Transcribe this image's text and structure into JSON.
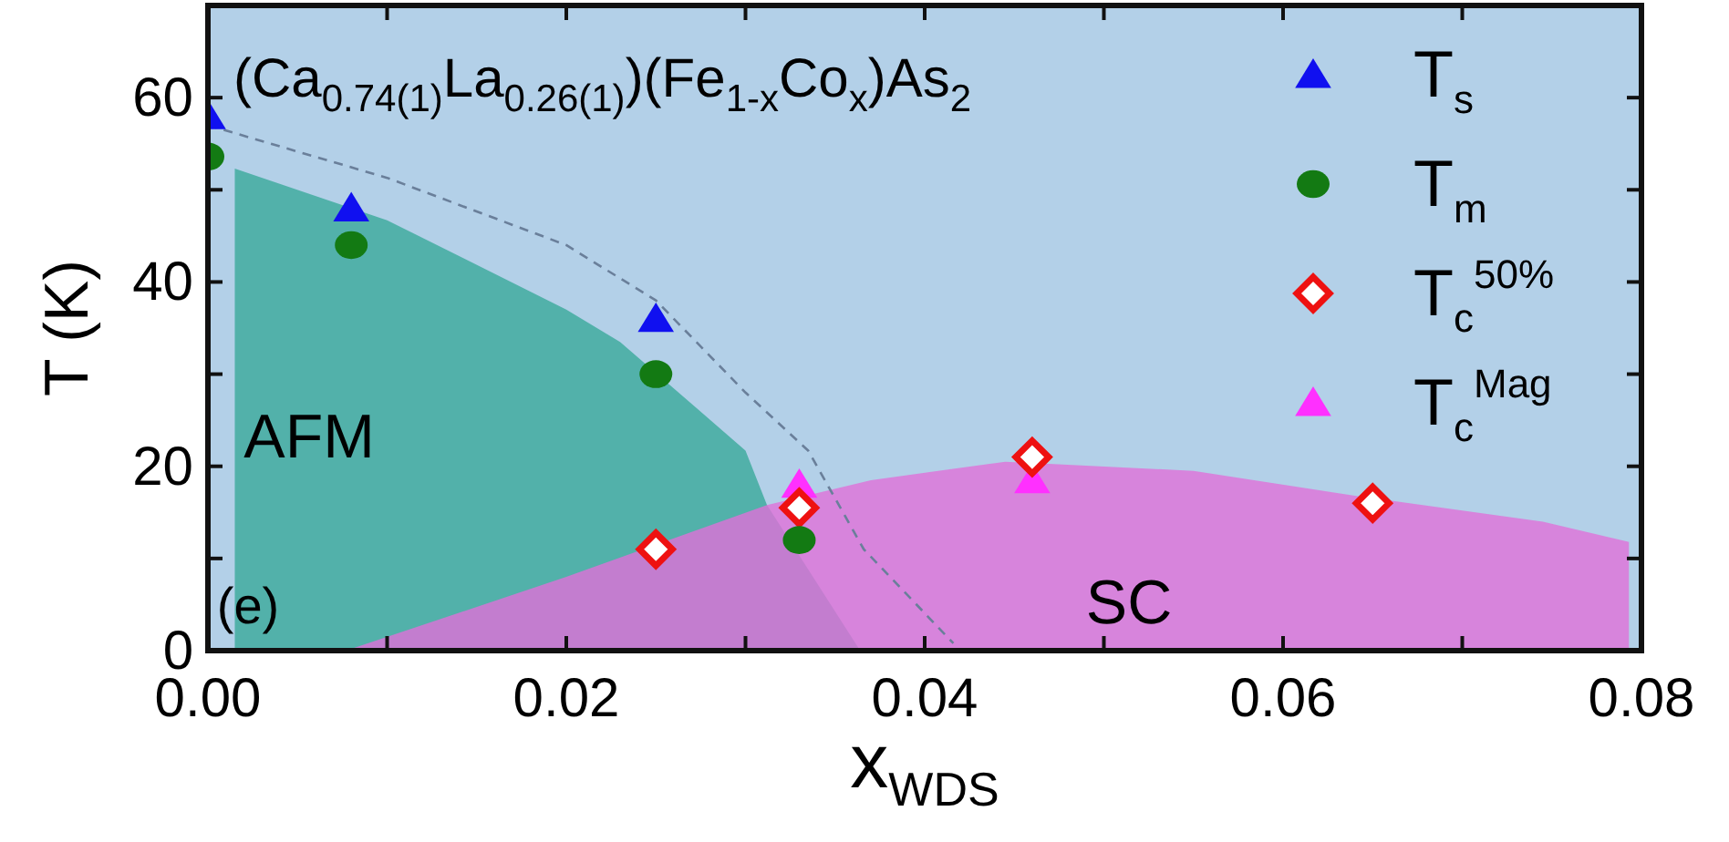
{
  "chart_data": {
    "type": "scatter",
    "title": "(Ca$_{0.74(1)}$La$_{0.26(1)}$)(Fe$_{1-x}$Co$_{x}$)As$_{2}$",
    "xlabel": "x$_{WDS}$",
    "ylabel": "T (K)",
    "annotations": [
      "AFM",
      "SC",
      "(e)"
    ],
    "xlim": [
      0,
      0.08
    ],
    "ylim": [
      0,
      70
    ],
    "xticks": [
      {
        "value": 0,
        "label": "0.00"
      },
      {
        "value": 0.01,
        "label": null
      },
      {
        "value": 0.02,
        "label": "0.02"
      },
      {
        "value": 0.03,
        "label": null
      },
      {
        "value": 0.04,
        "label": "0.04"
      },
      {
        "value": 0.05,
        "label": null
      },
      {
        "value": 0.06,
        "label": "0.06"
      },
      {
        "value": 0.07,
        "label": null
      },
      {
        "value": 0.08,
        "label": "0.08"
      }
    ],
    "yticks": [
      0,
      {
        "value": 10,
        "label": null
      },
      20,
      {
        "value": 30,
        "label": null
      },
      40,
      {
        "value": 50,
        "label": null
      },
      60
    ],
    "legend": "top right",
    "series": [
      {
        "type": "area",
        "color": "#3aa99a",
        "x": [
          0.0015,
          0.01,
          0.02,
          0.023,
          0.03,
          0.0312,
          0.0364
        ],
        "values": [
          52.3,
          46.7,
          37,
          33.5,
          21.7,
          15.8,
          0
        ]
      },
      {
        "type": "area",
        "color": "#e070d8",
        "x": [
          0.0077,
          0.02,
          0.0312,
          0.037,
          0.0445,
          0.055,
          0.064,
          0.0745,
          0.0793
        ],
        "values": [
          0,
          8,
          15.8,
          18.5,
          20.5,
          19.5,
          16.8,
          14,
          11.8
        ]
      },
      {
        "type": "line",
        "color": "#6a7f9a",
        "line_style": "dashed",
        "marker": "none",
        "x": [
          0,
          0.01,
          0.02,
          0.025,
          0.03,
          0.0335,
          0.0366,
          0.0416
        ],
        "values": [
          57,
          51.3,
          44,
          38,
          28,
          21.7,
          11,
          0.8
        ]
      },
      {
        "name": "T$_{s}$",
        "color": "#1010f0",
        "marker": "triangle",
        "x": [
          0,
          0.008,
          0.025
        ],
        "values": [
          58,
          48,
          36
        ]
      },
      {
        "name": "T$_{m}$",
        "color": "#137a13",
        "marker": "circle",
        "x": [
          0,
          0.008,
          0.025,
          0.033
        ],
        "values": [
          53.6,
          44,
          30,
          12
        ]
      },
      {
        "name": "T$_{c}$$^{50%}$",
        "color": "#ee1111",
        "marker": "diamond",
        "x": [
          0.025,
          0.033,
          0.046,
          0.065
        ],
        "values": [
          11,
          15.5,
          21,
          16
        ]
      },
      {
        "name": "T$_{c}$$^{Mag}$",
        "color": "#ff30ff",
        "marker": "triangle",
        "x": [
          0.033,
          0.046
        ],
        "values": [
          18,
          18.5
        ]
      }
    ]
  }
}
